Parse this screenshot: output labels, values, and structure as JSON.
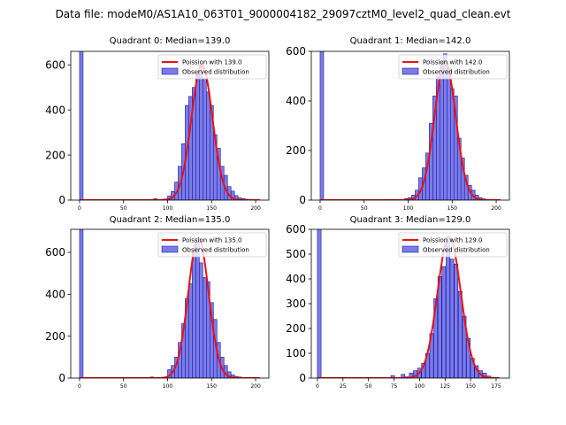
{
  "figure": {
    "suptitle": "Data file: modeM0/AS1A10_063T01_9000004182_29097cztM0_level2_quad_clean.evt"
  },
  "colors": {
    "bar_fill": "#7b7bea",
    "bar_edge": "#1a1a9a",
    "fit_line": "#ee1111"
  },
  "chart_data": [
    {
      "type": "bar",
      "title": "Quadrant 0: Median=139.0",
      "median": 139.0,
      "xlim": [
        -10,
        215
      ],
      "ylim": [
        0,
        660
      ],
      "xticks": [
        "0",
        "50",
        "100",
        "150",
        "200"
      ],
      "yticks": [
        "0",
        "200",
        "400",
        "600"
      ],
      "bin_width": 4,
      "bins": [
        {
          "x": 0,
          "y": 680
        },
        {
          "x": 84,
          "y": 6
        },
        {
          "x": 96,
          "y": 5
        },
        {
          "x": 100,
          "y": 18
        },
        {
          "x": 104,
          "y": 38
        },
        {
          "x": 108,
          "y": 80
        },
        {
          "x": 112,
          "y": 150
        },
        {
          "x": 116,
          "y": 250
        },
        {
          "x": 120,
          "y": 420
        },
        {
          "x": 124,
          "y": 460
        },
        {
          "x": 128,
          "y": 500
        },
        {
          "x": 132,
          "y": 560
        },
        {
          "x": 136,
          "y": 600
        },
        {
          "x": 140,
          "y": 540
        },
        {
          "x": 144,
          "y": 480
        },
        {
          "x": 148,
          "y": 420
        },
        {
          "x": 152,
          "y": 290
        },
        {
          "x": 156,
          "y": 230
        },
        {
          "x": 160,
          "y": 150
        },
        {
          "x": 164,
          "y": 110
        },
        {
          "x": 168,
          "y": 60
        },
        {
          "x": 172,
          "y": 40
        },
        {
          "x": 176,
          "y": 20
        },
        {
          "x": 180,
          "y": 10
        },
        {
          "x": 184,
          "y": 6
        },
        {
          "x": 188,
          "y": 4
        },
        {
          "x": 192,
          "y": 3
        }
      ],
      "fit": {
        "peak": 600,
        "sigma": 12,
        "x_range": [
          0,
          205
        ]
      },
      "legend": {
        "fit_label": "Poission with 139.0",
        "bar_label": "Observed distribution",
        "loc": "upper right"
      }
    },
    {
      "type": "bar",
      "title": "Quadrant 1: Median=142.0",
      "median": 142.0,
      "xlim": [
        -10,
        215
      ],
      "ylim": [
        0,
        600
      ],
      "xticks": [
        "0",
        "50",
        "100",
        "150",
        "200"
      ],
      "yticks": [
        "0",
        "200",
        "400",
        "600"
      ],
      "bin_width": 4,
      "bins": [
        {
          "x": 0,
          "y": 620
        },
        {
          "x": 80,
          "y": 3
        },
        {
          "x": 96,
          "y": 6
        },
        {
          "x": 100,
          "y": 10
        },
        {
          "x": 104,
          "y": 20
        },
        {
          "x": 108,
          "y": 40
        },
        {
          "x": 112,
          "y": 90
        },
        {
          "x": 116,
          "y": 130
        },
        {
          "x": 120,
          "y": 190
        },
        {
          "x": 124,
          "y": 310
        },
        {
          "x": 128,
          "y": 420
        },
        {
          "x": 132,
          "y": 500
        },
        {
          "x": 136,
          "y": 560
        },
        {
          "x": 140,
          "y": 590
        },
        {
          "x": 144,
          "y": 530
        },
        {
          "x": 148,
          "y": 450
        },
        {
          "x": 152,
          "y": 420
        },
        {
          "x": 156,
          "y": 250
        },
        {
          "x": 160,
          "y": 170
        },
        {
          "x": 164,
          "y": 100
        },
        {
          "x": 168,
          "y": 60
        },
        {
          "x": 172,
          "y": 40
        },
        {
          "x": 176,
          "y": 20
        },
        {
          "x": 180,
          "y": 10
        },
        {
          "x": 184,
          "y": 5
        },
        {
          "x": 188,
          "y": 3
        }
      ],
      "fit": {
        "peak": 560,
        "sigma": 12,
        "x_range": [
          0,
          205
        ]
      },
      "legend": {
        "fit_label": "Poission with 142.0",
        "bar_label": "Observed distribution",
        "loc": "upper right"
      }
    },
    {
      "type": "bar",
      "title": "Quadrant 2: Median=135.0",
      "median": 135.0,
      "xlim": [
        -10,
        215
      ],
      "ylim": [
        0,
        710
      ],
      "xticks": [
        "0",
        "50",
        "100",
        "150",
        "200"
      ],
      "yticks": [
        "0",
        "200",
        "400",
        "600"
      ],
      "bin_width": 4,
      "bins": [
        {
          "x": 0,
          "y": 720
        },
        {
          "x": 80,
          "y": 5
        },
        {
          "x": 100,
          "y": 40
        },
        {
          "x": 104,
          "y": 60
        },
        {
          "x": 108,
          "y": 100
        },
        {
          "x": 112,
          "y": 170
        },
        {
          "x": 116,
          "y": 260
        },
        {
          "x": 120,
          "y": 380
        },
        {
          "x": 124,
          "y": 450
        },
        {
          "x": 128,
          "y": 600
        },
        {
          "x": 132,
          "y": 650
        },
        {
          "x": 136,
          "y": 550
        },
        {
          "x": 140,
          "y": 480
        },
        {
          "x": 144,
          "y": 460
        },
        {
          "x": 148,
          "y": 360
        },
        {
          "x": 152,
          "y": 280
        },
        {
          "x": 156,
          "y": 170
        },
        {
          "x": 160,
          "y": 100
        },
        {
          "x": 164,
          "y": 60
        },
        {
          "x": 168,
          "y": 30
        },
        {
          "x": 172,
          "y": 15
        },
        {
          "x": 176,
          "y": 8
        },
        {
          "x": 180,
          "y": 5
        }
      ],
      "fit": {
        "peak": 670,
        "sigma": 11.6,
        "x_range": [
          0,
          205
        ]
      },
      "legend": {
        "fit_label": "Poission with 135.0",
        "bar_label": "Observed distribution",
        "loc": "upper right"
      }
    },
    {
      "type": "bar",
      "title": "Quadrant 3: Median=129.0",
      "median": 129.0,
      "xlim": [
        -6,
        188
      ],
      "ylim": [
        0,
        600
      ],
      "xticks": [
        "0",
        "25",
        "50",
        "75",
        "100",
        "125",
        "150",
        "175"
      ],
      "yticks": [
        "0",
        "100",
        "200",
        "300",
        "400",
        "500",
        "600"
      ],
      "bin_width": 3.6,
      "bins": [
        {
          "x": 0,
          "y": 620
        },
        {
          "x": 72,
          "y": 10
        },
        {
          "x": 82,
          "y": 15
        },
        {
          "x": 86,
          "y": 5
        },
        {
          "x": 90,
          "y": 20
        },
        {
          "x": 94,
          "y": 30
        },
        {
          "x": 98,
          "y": 40
        },
        {
          "x": 102,
          "y": 60
        },
        {
          "x": 106,
          "y": 100
        },
        {
          "x": 110,
          "y": 180
        },
        {
          "x": 114,
          "y": 320
        },
        {
          "x": 118,
          "y": 410
        },
        {
          "x": 122,
          "y": 450
        },
        {
          "x": 126,
          "y": 570
        },
        {
          "x": 130,
          "y": 480
        },
        {
          "x": 134,
          "y": 460
        },
        {
          "x": 138,
          "y": 350
        },
        {
          "x": 142,
          "y": 250
        },
        {
          "x": 146,
          "y": 160
        },
        {
          "x": 150,
          "y": 80
        },
        {
          "x": 154,
          "y": 50
        },
        {
          "x": 158,
          "y": 30
        },
        {
          "x": 162,
          "y": 20
        },
        {
          "x": 166,
          "y": 8
        },
        {
          "x": 170,
          "y": 3
        }
      ],
      "fit": {
        "peak": 570,
        "sigma": 11.4,
        "x_range": [
          0,
          178
        ]
      },
      "legend": {
        "fit_label": "Poission with 129.0",
        "bar_label": "Observed distribution",
        "loc": "upper right"
      }
    }
  ]
}
